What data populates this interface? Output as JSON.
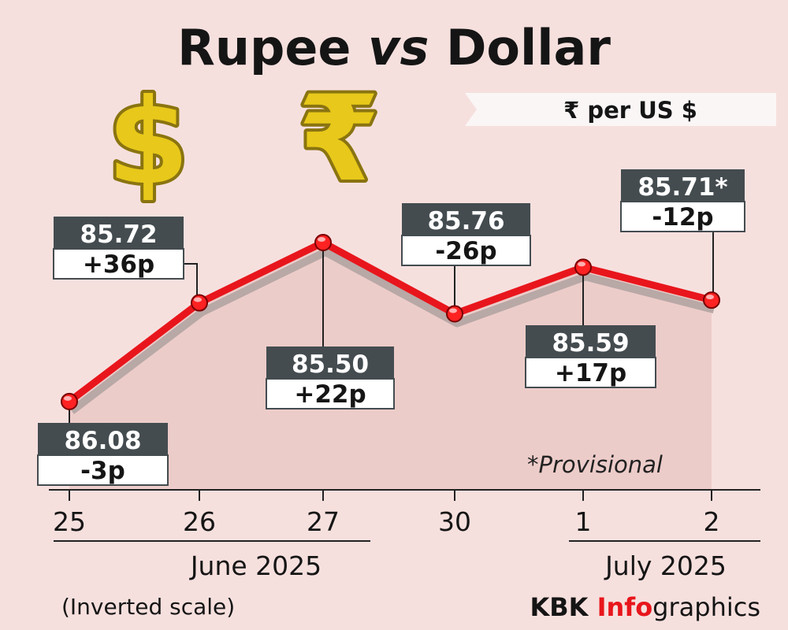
{
  "chart_data": {
    "type": "line",
    "title_parts": [
      "Rupee ",
      "vs",
      " Dollar"
    ],
    "unit_label": "₹  per US $",
    "categories": [
      "25",
      "26",
      "27",
      "30",
      "1",
      "2"
    ],
    "values": [
      86.08,
      85.72,
      85.5,
      85.76,
      85.59,
      85.71
    ],
    "value_labels": [
      "86.08",
      "85.72",
      "85.50",
      "85.76",
      "85.59",
      "85.71*"
    ],
    "change_labels": [
      "-3p",
      "+36p",
      "+22p",
      "-26p",
      "+17p",
      "-12p"
    ],
    "month_labels": [
      "June 2025",
      "July 2025"
    ],
    "inverted_scale": true,
    "scale_note": "(Inverted scale)",
    "footnote": "*Provisional",
    "grid": false,
    "colors": {
      "line": "#e8161c",
      "label_top": "#444c50",
      "fill": "#ecccc9",
      "background": "#f6e0de",
      "coin": "#e8c81a"
    }
  },
  "credit": {
    "part1": "KBK ",
    "part2": "Info",
    "part3": "graphics",
    "accent": "#e8161c"
  },
  "icons": [
    "dollar-sign-3d-icon",
    "rupee-sign-3d-icon"
  ]
}
